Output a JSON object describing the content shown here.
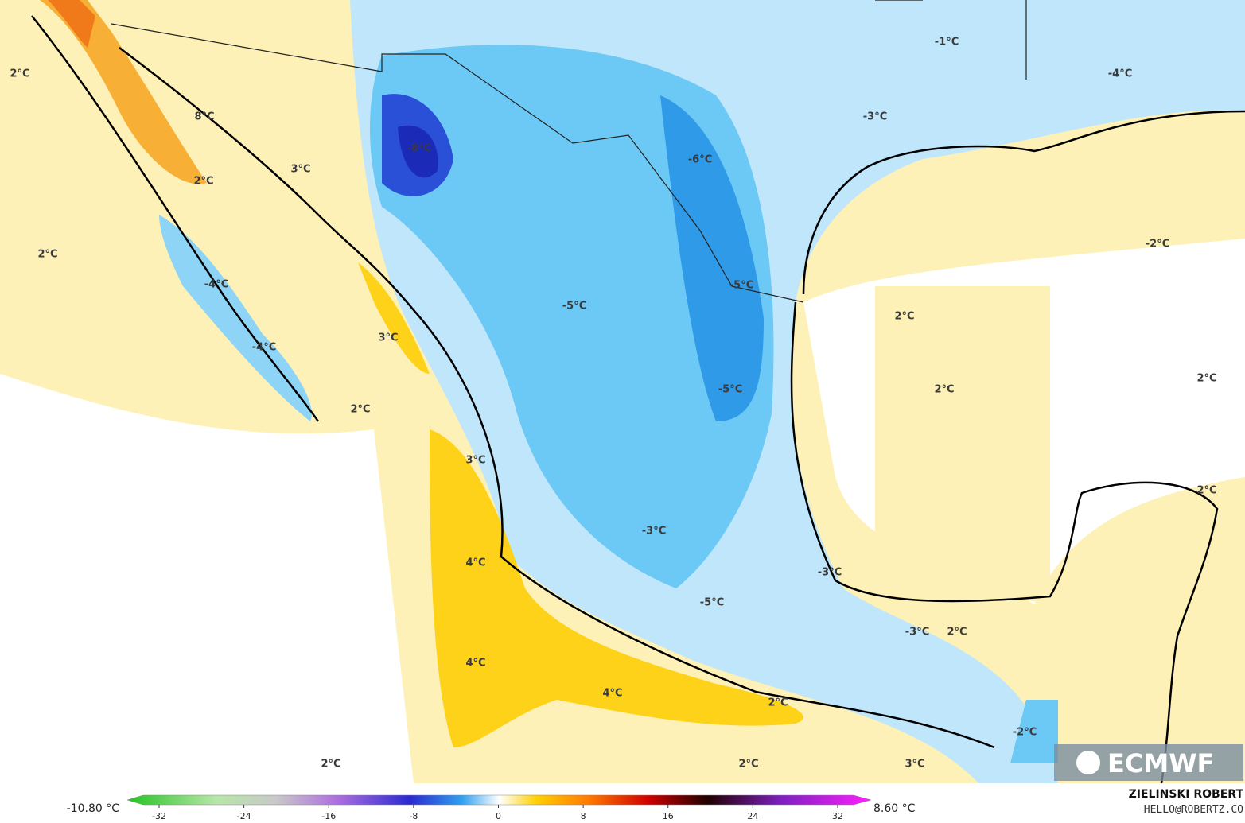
{
  "map": {
    "labels": [
      "2°C",
      "8°C",
      "3°C",
      "2°C",
      "-8°C",
      "-1°C",
      "-4°C",
      "-3°C",
      "-6°C",
      "2°C",
      "-2°C",
      "-4°C",
      "-5°C",
      "-5°C",
      "2°C",
      "-4°C",
      "3°C",
      "-5°C",
      "2°C",
      "2°C",
      "2°C",
      "3°C",
      "2°C",
      "-3°C",
      "4°C",
      "-3°C",
      "-5°C",
      "-3°C",
      "2°C",
      "4°C",
      "4°C",
      "2°C",
      "-2°C",
      "2°C",
      "2°C",
      "3°C"
    ],
    "logo": "ECMWF"
  },
  "legend": {
    "min": "-10.80 °C",
    "max": "8.60 °C",
    "ticks": [
      -32,
      -24,
      -16,
      -8,
      0,
      8,
      16,
      24,
      32
    ]
  },
  "credit": {
    "name": "ZIELINSKI ROBERT",
    "email": "HELLO@ROBERTZ.CO"
  }
}
